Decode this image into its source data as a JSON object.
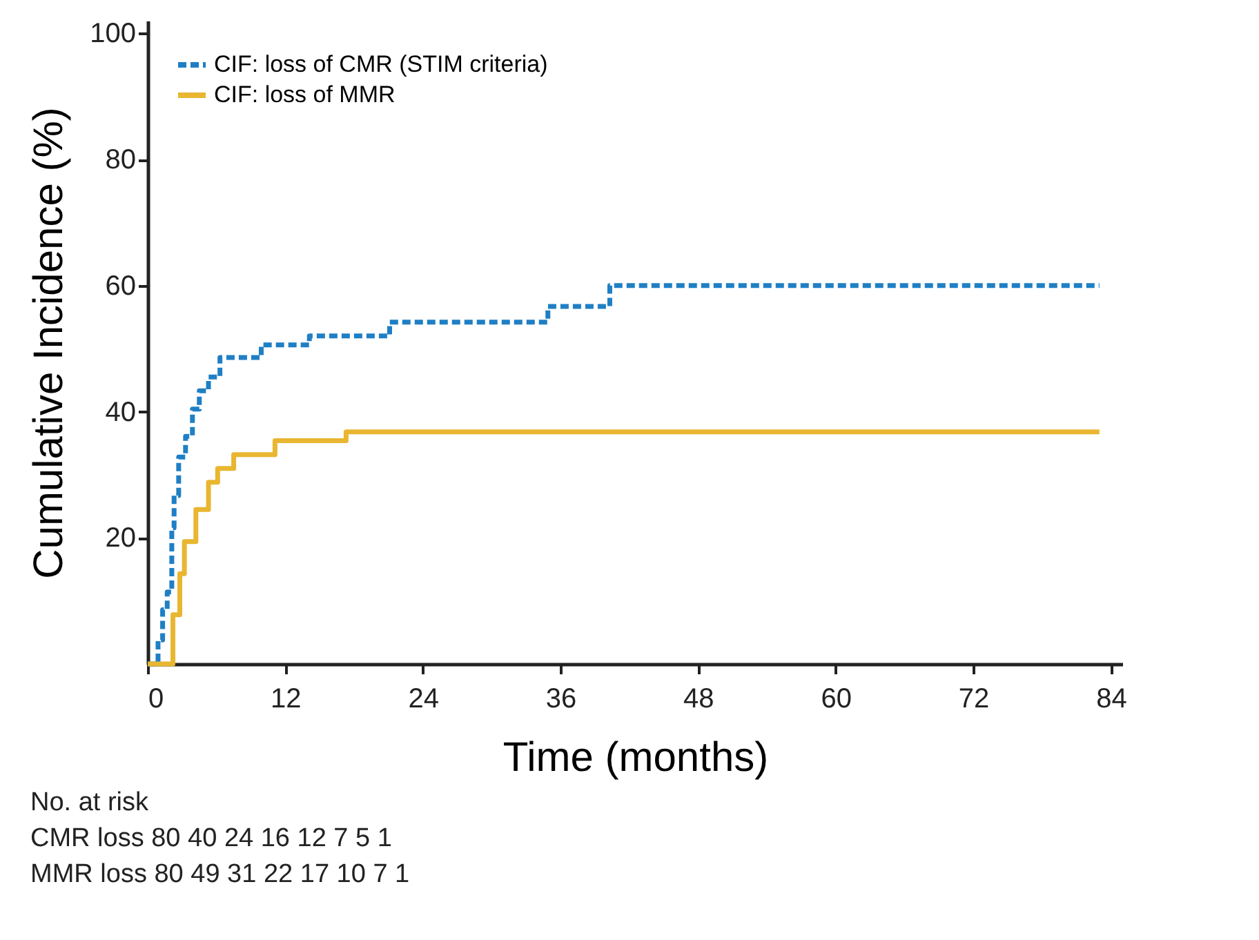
{
  "chart_data": {
    "type": "step",
    "xlabel": "Time (months)",
    "ylabel": "Cumulative Incidence (%)",
    "xlim": [
      0,
      85
    ],
    "xticks": [
      0,
      12,
      24,
      36,
      48,
      60,
      72,
      84
    ],
    "ylim": [
      0,
      102
    ],
    "yticks": [
      20,
      40,
      60,
      80,
      100
    ],
    "grid": false,
    "legend": "top left",
    "series": [
      {
        "name": "CIF: loss of CMR (STIM criteria)",
        "color": "#1f7fc4",
        "line_style": "dashed",
        "x": [
          0,
          0.9,
          1.3,
          1.7,
          2.1,
          2.3,
          2.7,
          3.3,
          3.9,
          4.5,
          5.3,
          6.3,
          9.9,
          14.1,
          21.1,
          34.9,
          40.3,
          83
        ],
        "values": [
          0,
          3.8,
          8.6,
          11.4,
          21.6,
          26.7,
          32.8,
          36.1,
          40.4,
          43.3,
          45.5,
          48.6,
          50.6,
          52,
          54.2,
          56.7,
          60,
          60
        ]
      },
      {
        "name": "CIF: loss of MMR",
        "color": "#e8b630",
        "line_style": "solid",
        "x": [
          0,
          2.2,
          2.8,
          3.2,
          4.2,
          5.3,
          6.1,
          7.5,
          11.1,
          17.3,
          83
        ],
        "values": [
          0,
          7.8,
          14.3,
          19.4,
          24.5,
          28.8,
          31,
          33.2,
          35.4,
          36.8,
          36.8
        ]
      }
    ],
    "annotations": [
      "No. at risk",
      "CMR loss 80 40 24 16 12 7 5 1",
      "MMR loss 80 49 31 22 17 10 7 1"
    ]
  }
}
